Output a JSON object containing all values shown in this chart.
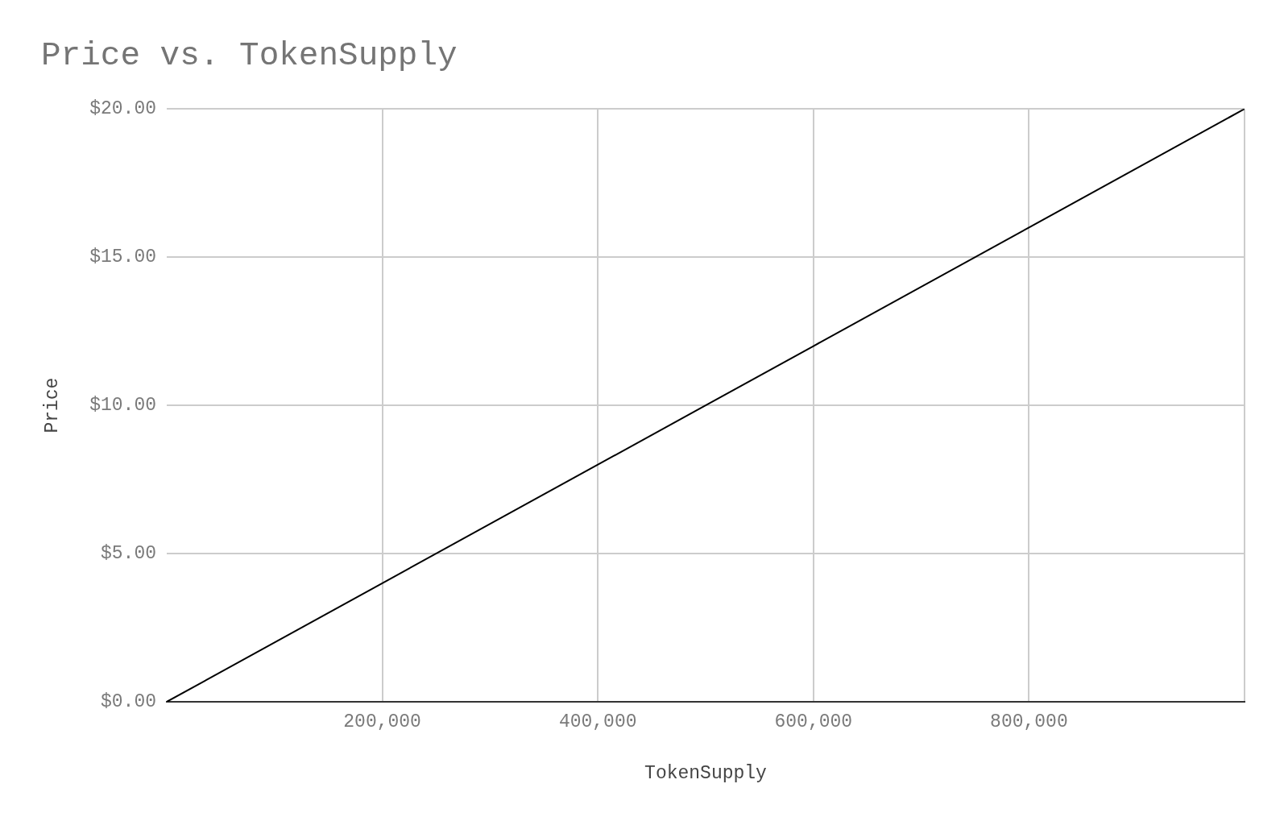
{
  "chart_data": {
    "type": "line",
    "title": "Price vs. TokenSupply",
    "xlabel": "TokenSupply",
    "ylabel": "Price",
    "x": [
      0,
      200000,
      400000,
      600000,
      800000,
      1000000
    ],
    "series": [
      {
        "color": "#000000",
        "values": [
          0,
          4,
          8,
          12,
          16,
          20
        ]
      }
    ],
    "xlim": [
      0,
      1000000
    ],
    "ylim": [
      0,
      20
    ],
    "xticks": [
      {
        "value": 200000,
        "label": "200,000"
      },
      {
        "value": 400000,
        "label": "400,000"
      },
      {
        "value": 600000,
        "label": "600,000"
      },
      {
        "value": 800000,
        "label": "800,000"
      },
      {
        "value": 1000000,
        "label": null
      }
    ],
    "yticks": [
      {
        "value": 0,
        "label": "$0.00"
      },
      {
        "value": 5,
        "label": "$5.00"
      },
      {
        "value": 10,
        "label": "$10.00"
      },
      {
        "value": 15,
        "label": "$15.00"
      },
      {
        "value": 20,
        "label": "$20.00"
      }
    ],
    "grid": true
  }
}
